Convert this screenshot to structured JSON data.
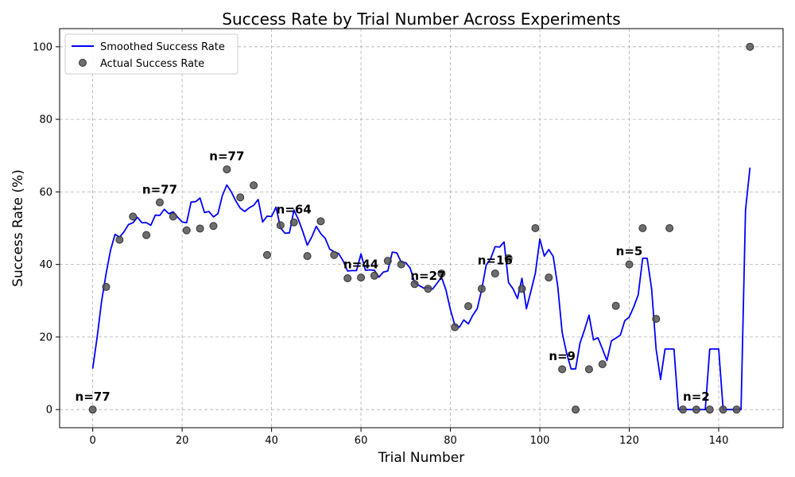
{
  "chart_data": {
    "type": "line",
    "title": "Success Rate by Trial Number Across Experiments",
    "xlabel": "Trial Number",
    "ylabel": "Success Rate (%)",
    "xlim": [
      -7.4,
      154.4
    ],
    "ylim": [
      -5,
      105
    ],
    "xticks": [
      0,
      20,
      40,
      60,
      80,
      100,
      120,
      140
    ],
    "yticks": [
      0,
      20,
      40,
      60,
      80,
      100
    ],
    "grid": true,
    "legend_position": "top-left",
    "colors": {
      "line": "#0000ff",
      "scatter": "#555555"
    },
    "series": [
      {
        "name": "Smoothed Success Rate",
        "type": "line",
        "points": [
          [
            0,
            11.3
          ],
          [
            1,
            20
          ],
          [
            2,
            30
          ],
          [
            3,
            37.5
          ],
          [
            4,
            44
          ],
          [
            5,
            48.3
          ],
          [
            6,
            47.5
          ],
          [
            7,
            49
          ],
          [
            8,
            51
          ],
          [
            9,
            51.5
          ],
          [
            10,
            53
          ],
          [
            11,
            51.5
          ],
          [
            12,
            51.5
          ],
          [
            13,
            50.8
          ],
          [
            14,
            53.6
          ],
          [
            15,
            53.5
          ],
          [
            16,
            55.2
          ],
          [
            17,
            54
          ],
          [
            18,
            54.5
          ],
          [
            19,
            53
          ],
          [
            20,
            51.7
          ],
          [
            21,
            51.5
          ],
          [
            22,
            57.2
          ],
          [
            23,
            57.3
          ],
          [
            24,
            58.3
          ],
          [
            25,
            54.3
          ],
          [
            26,
            54.6
          ],
          [
            27,
            53.1
          ],
          [
            28,
            54
          ],
          [
            29,
            59
          ],
          [
            30,
            61.9
          ],
          [
            31,
            60
          ],
          [
            32,
            57.5
          ],
          [
            33,
            55.5
          ],
          [
            34,
            54.6
          ],
          [
            35,
            55.6
          ],
          [
            36,
            56.3
          ],
          [
            37,
            57.9
          ],
          [
            38,
            51.7
          ],
          [
            39,
            53.3
          ],
          [
            40,
            53.2
          ],
          [
            41,
            55.8
          ],
          [
            42,
            50.1
          ],
          [
            43,
            48.6
          ],
          [
            44,
            48.7
          ],
          [
            45,
            55
          ],
          [
            46,
            52.4
          ],
          [
            47,
            49
          ],
          [
            48,
            45.3
          ],
          [
            49,
            47.6
          ],
          [
            50,
            50.5
          ],
          [
            51,
            48.5
          ],
          [
            52,
            47.2
          ],
          [
            53,
            44.2
          ],
          [
            54,
            43.5
          ],
          [
            55,
            43
          ],
          [
            56,
            41
          ],
          [
            57,
            38.2
          ],
          [
            58,
            38.3
          ],
          [
            59,
            38.3
          ],
          [
            60,
            42.9
          ],
          [
            61,
            38.4
          ],
          [
            62,
            38.5
          ],
          [
            63,
            38.4
          ],
          [
            64,
            36.5
          ],
          [
            65,
            37.9
          ],
          [
            66,
            38.2
          ],
          [
            67,
            43.4
          ],
          [
            68,
            43.2
          ],
          [
            69,
            40.6
          ],
          [
            70,
            40.5
          ],
          [
            71,
            39
          ],
          [
            72,
            35
          ],
          [
            73,
            34.2
          ],
          [
            74,
            33.5
          ],
          [
            75,
            33.6
          ],
          [
            76,
            33.2
          ],
          [
            77,
            34.8
          ],
          [
            78,
            36.5
          ],
          [
            79,
            33
          ],
          [
            80,
            27.5
          ],
          [
            81,
            23.2
          ],
          [
            82,
            22.7
          ],
          [
            83,
            24.7
          ],
          [
            84,
            23.6
          ],
          [
            85,
            26
          ],
          [
            86,
            27.8
          ],
          [
            87,
            33.1
          ],
          [
            88,
            39.8
          ],
          [
            89,
            41.6
          ],
          [
            90,
            44.9
          ],
          [
            91,
            44.8
          ],
          [
            92,
            46.2
          ],
          [
            93,
            35
          ],
          [
            94,
            33.3
          ],
          [
            95,
            30.6
          ],
          [
            96,
            36.2
          ],
          [
            97,
            27.8
          ],
          [
            98,
            32.6
          ],
          [
            99,
            37.6
          ],
          [
            100,
            47
          ],
          [
            101,
            42.3
          ],
          [
            102,
            44.1
          ],
          [
            103,
            42.2
          ],
          [
            104,
            34
          ],
          [
            105,
            21.2
          ],
          [
            106,
            15.5
          ],
          [
            107,
            11.2
          ],
          [
            108,
            11.2
          ],
          [
            109,
            18.4
          ],
          [
            110,
            22
          ],
          [
            111,
            26
          ],
          [
            112,
            19.2
          ],
          [
            113,
            19.8
          ],
          [
            114,
            16.7
          ],
          [
            115,
            13.5
          ],
          [
            116,
            18.9
          ],
          [
            117,
            19.7
          ],
          [
            118,
            20.5
          ],
          [
            119,
            24.5
          ],
          [
            120,
            25.5
          ],
          [
            121,
            28.3
          ],
          [
            122,
            31.6
          ],
          [
            123,
            41.7
          ],
          [
            124,
            41.7
          ],
          [
            125,
            33.3
          ],
          [
            126,
            16.7
          ],
          [
            127,
            8.3
          ],
          [
            128,
            16.7
          ],
          [
            129,
            16.7
          ],
          [
            130,
            16.7
          ],
          [
            131,
            0
          ],
          [
            132,
            0
          ],
          [
            133,
            0
          ],
          [
            134,
            0
          ],
          [
            135,
            0
          ],
          [
            136,
            0
          ],
          [
            137,
            0
          ],
          [
            138,
            16.7
          ],
          [
            139,
            16.7
          ],
          [
            140,
            16.7
          ],
          [
            141,
            0
          ],
          [
            142,
            0
          ],
          [
            143,
            0
          ],
          [
            144,
            0
          ],
          [
            145,
            0
          ],
          [
            146,
            55
          ],
          [
            147,
            66.7
          ]
        ]
      },
      {
        "name": "Actual Success Rate",
        "type": "scatter",
        "points": [
          [
            0,
            0
          ],
          [
            3,
            33.8
          ],
          [
            6,
            46.8
          ],
          [
            9,
            53.2
          ],
          [
            12,
            48.1
          ],
          [
            15,
            57.1
          ],
          [
            18,
            53.2
          ],
          [
            21,
            49.4
          ],
          [
            24,
            49.9
          ],
          [
            27,
            50.6
          ],
          [
            30,
            66.2
          ],
          [
            33,
            58.5
          ],
          [
            36,
            61.8
          ],
          [
            39,
            42.6
          ],
          [
            42,
            50.8
          ],
          [
            45,
            51.6
          ],
          [
            48,
            42.3
          ],
          [
            51,
            51.9
          ],
          [
            54,
            42.6
          ],
          [
            57,
            36.2
          ],
          [
            60,
            36.4
          ],
          [
            63,
            36.9
          ],
          [
            66,
            41
          ],
          [
            69,
            40
          ],
          [
            72,
            34.6
          ],
          [
            75,
            33.3
          ],
          [
            78,
            37.5
          ],
          [
            81,
            22.7
          ],
          [
            84,
            28.5
          ],
          [
            87,
            33.3
          ],
          [
            90,
            37.5
          ],
          [
            93,
            41.7
          ],
          [
            96,
            33.3
          ],
          [
            99,
            50
          ],
          [
            102,
            36.4
          ],
          [
            105,
            11.1
          ],
          [
            108,
            0
          ],
          [
            111,
            11.1
          ],
          [
            114,
            12.5
          ],
          [
            117,
            28.6
          ],
          [
            120,
            40
          ],
          [
            123,
            50
          ],
          [
            126,
            25
          ],
          [
            129,
            50
          ],
          [
            132,
            0
          ],
          [
            135,
            0
          ],
          [
            138,
            0
          ],
          [
            141,
            0
          ],
          [
            144,
            0
          ],
          [
            147,
            100
          ]
        ]
      }
    ],
    "annotations": [
      {
        "text": "n=77",
        "x": 0,
        "y": 2.5
      },
      {
        "text": "n=77",
        "x": 15,
        "y": 59.5
      },
      {
        "text": "n=77",
        "x": 30,
        "y": 68.7
      },
      {
        "text": "n=64",
        "x": 45,
        "y": 54
      },
      {
        "text": "n=44",
        "x": 60,
        "y": 38.9
      },
      {
        "text": "n=27",
        "x": 75,
        "y": 35.8
      },
      {
        "text": "n=16",
        "x": 90,
        "y": 40
      },
      {
        "text": "n=9",
        "x": 105,
        "y": 13.6
      },
      {
        "text": "n=5",
        "x": 120,
        "y": 42.5
      },
      {
        "text": "n=2",
        "x": 135,
        "y": 2.5
      }
    ]
  }
}
